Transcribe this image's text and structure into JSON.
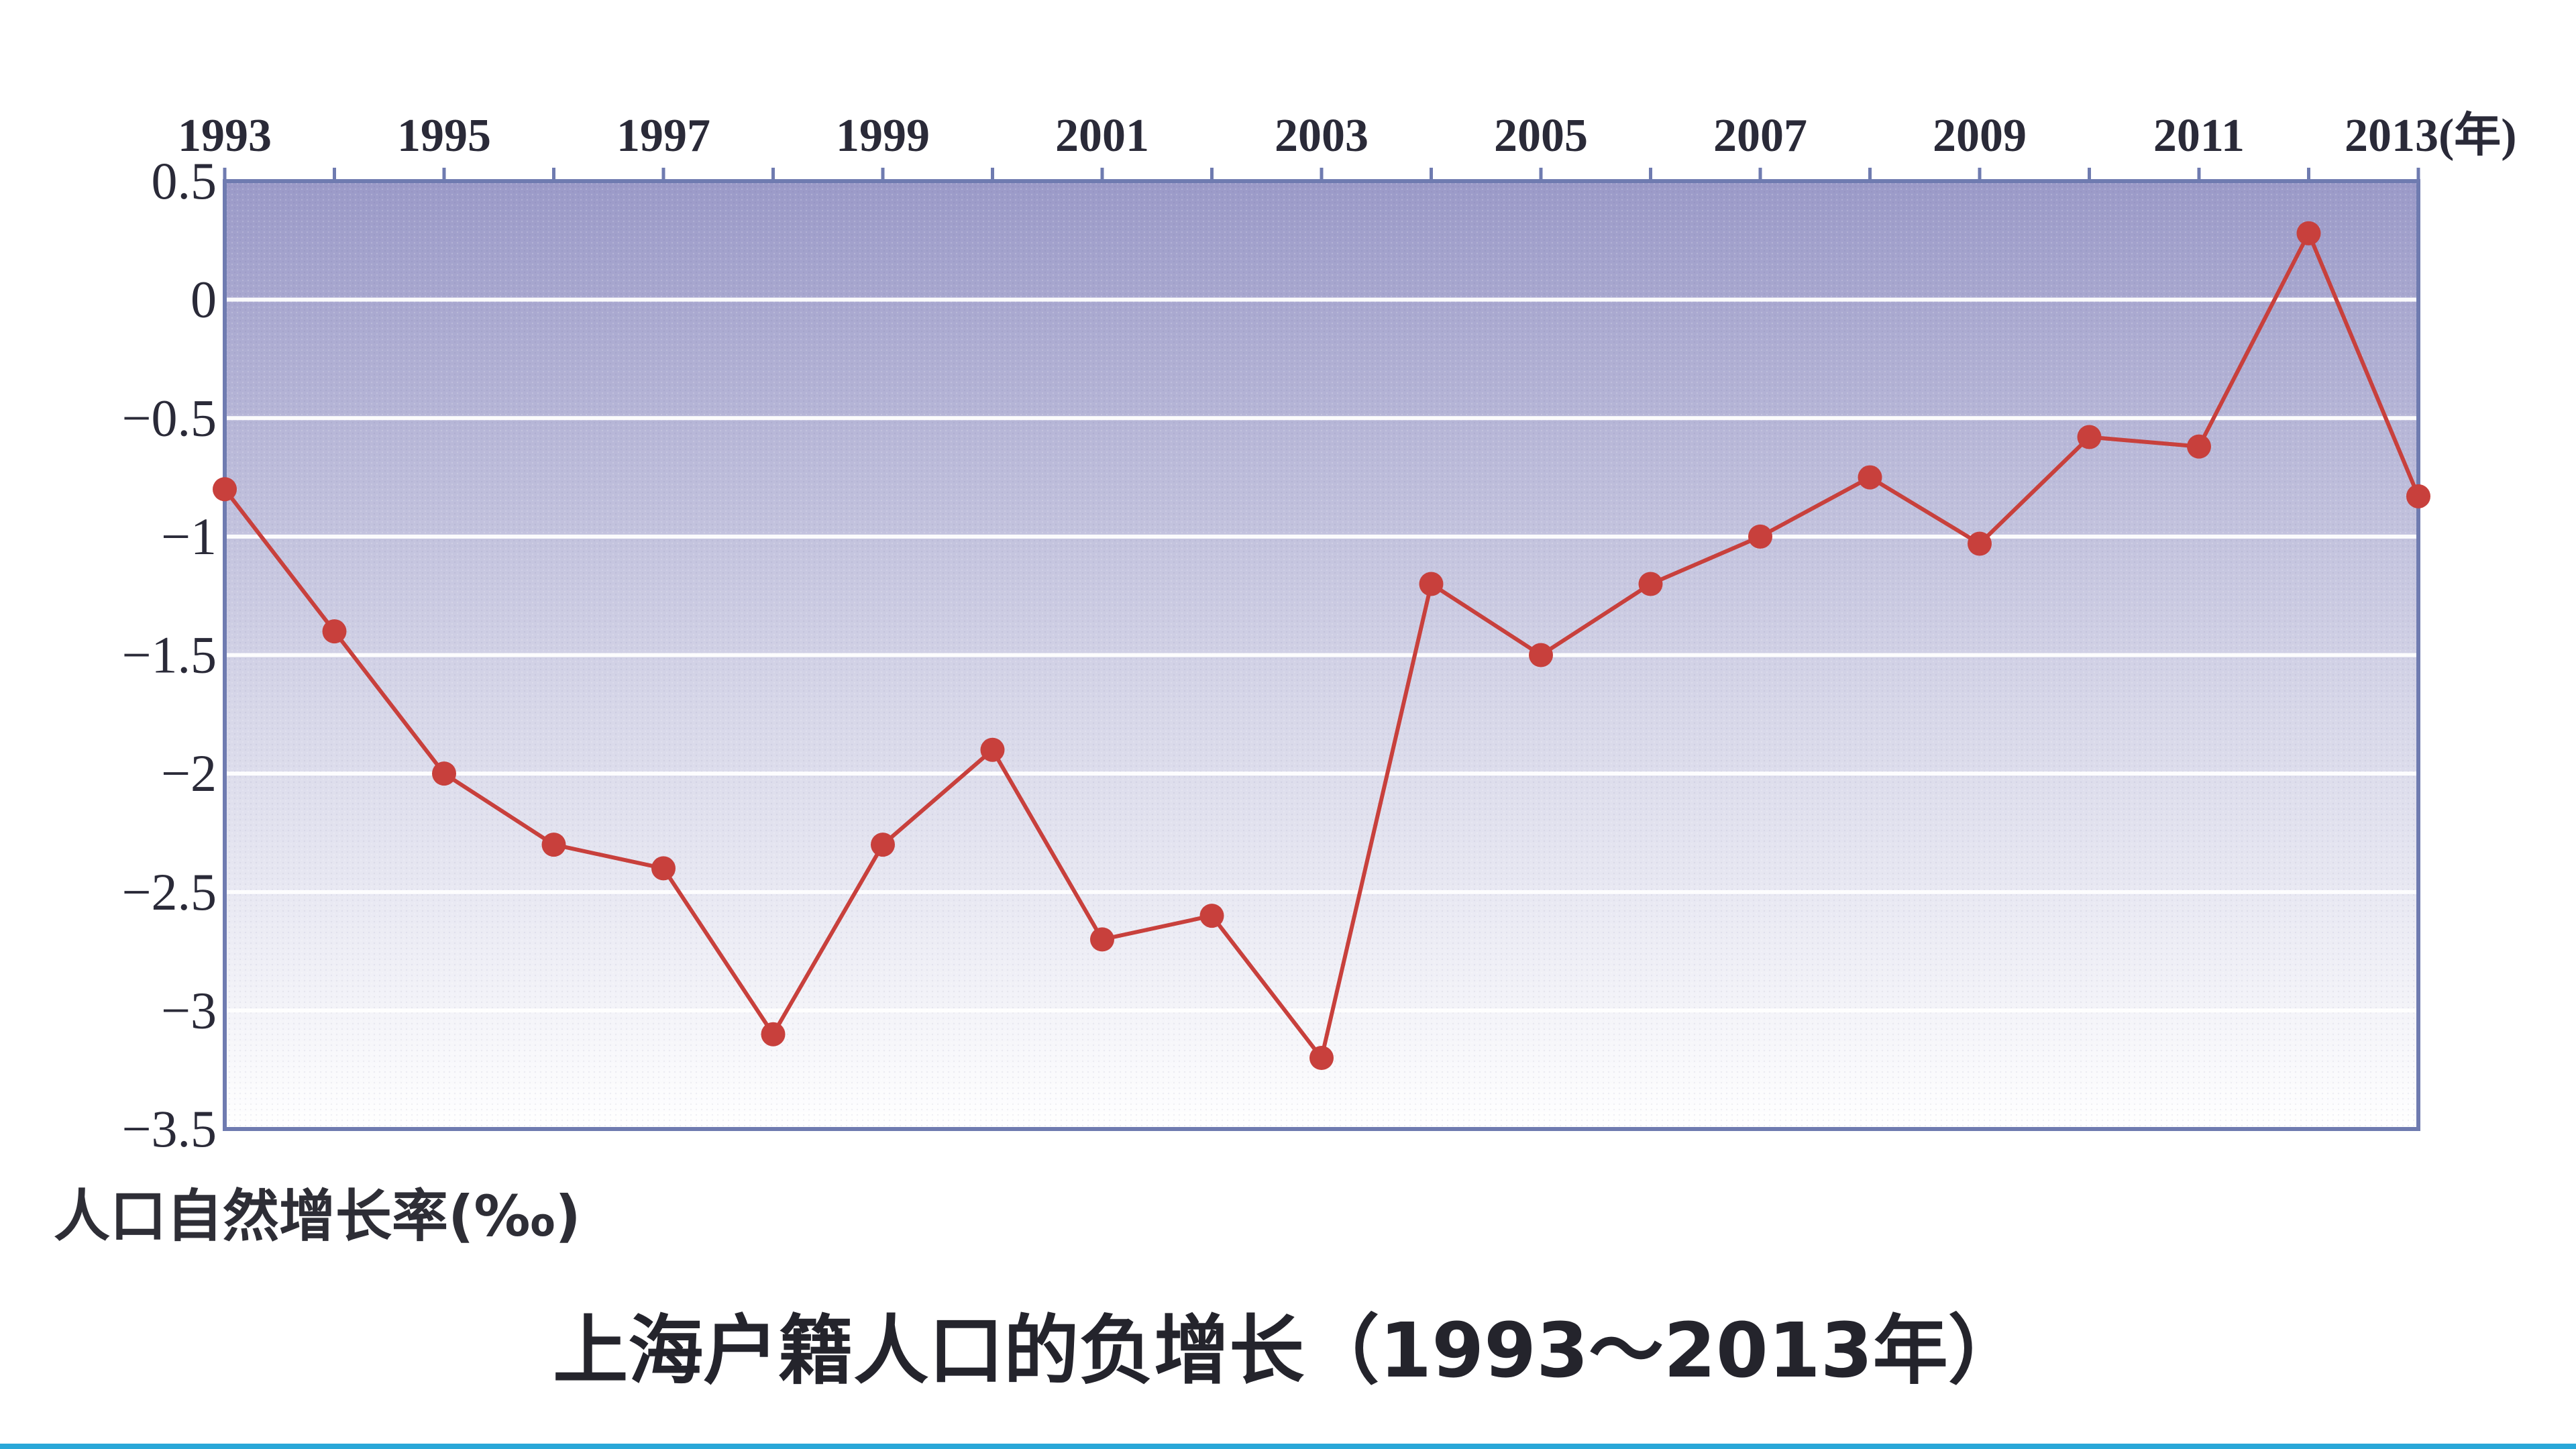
{
  "chart_data": {
    "type": "line",
    "title": "上海户籍人口的负增长（1993～2013年）",
    "ylabel": "人口自然增长率(‰)",
    "xlabel": "",
    "x_unit_suffix": "(年)",
    "x": [
      1993,
      1994,
      1995,
      1996,
      1997,
      1998,
      1999,
      2000,
      2001,
      2002,
      2003,
      2004,
      2005,
      2006,
      2007,
      2008,
      2009,
      2010,
      2011,
      2012,
      2013
    ],
    "x_tick_labels": [
      "1993",
      "1995",
      "1997",
      "1999",
      "2001",
      "2003",
      "2005",
      "2007",
      "2009",
      "2011",
      "2013"
    ],
    "y_tick_labels": [
      "0.5",
      "0",
      "−0.5",
      "−1",
      "−1.5",
      "−2",
      "−2.5",
      "−3",
      "−3.5"
    ],
    "y_ticks": [
      0.5,
      0,
      -0.5,
      -1,
      -1.5,
      -2,
      -2.5,
      -3,
      -3.5
    ],
    "ylim": [
      -3.5,
      0.5
    ],
    "series": [
      {
        "values": [
          -0.8,
          -1.4,
          -2.0,
          -2.3,
          -2.4,
          -3.1,
          -2.3,
          -1.9,
          -2.7,
          -2.6,
          -3.2,
          -1.2,
          -1.5,
          -1.2,
          -1.0,
          -0.75,
          -1.03,
          -0.58,
          -0.62,
          0.28,
          -0.83
        ]
      }
    ],
    "grid": true,
    "x_axis_position": "top",
    "colors": {
      "line": "#c8403c",
      "marker": "#c8403c",
      "plot_bg_top": "#9b9ac8",
      "plot_bg_bottom": "#ffffff",
      "gridline": "#ffffff",
      "axis": "#6f7bb0"
    }
  }
}
